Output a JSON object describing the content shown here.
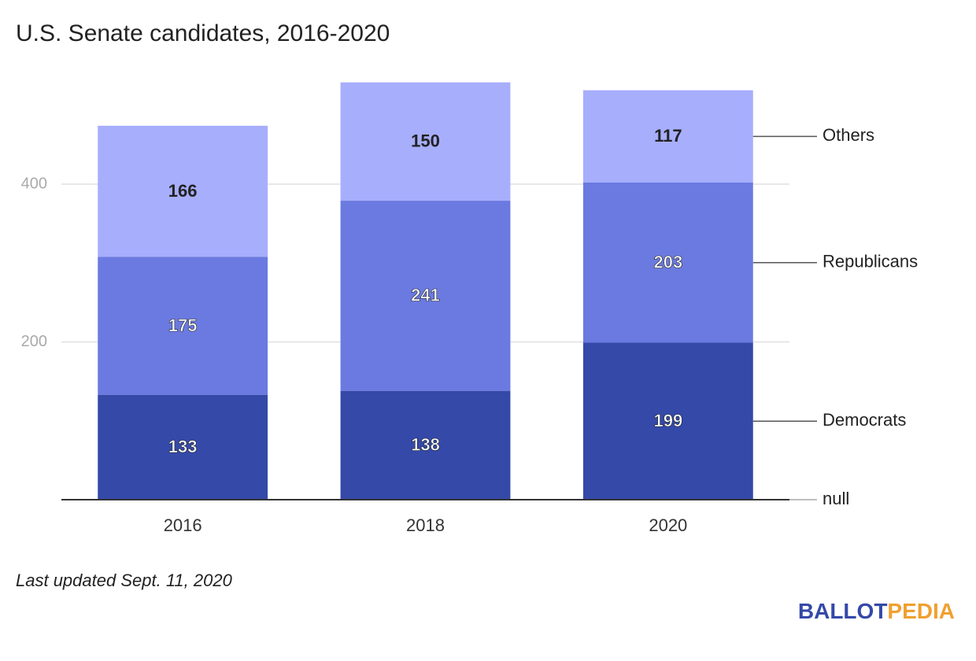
{
  "chart_data": {
    "type": "stacked-bar",
    "title": "U.S. Senate candidates, 2016-2020",
    "categories": [
      "2016",
      "2018",
      "2020"
    ],
    "series": [
      {
        "name": "null",
        "color": "#9e9e9e",
        "values": [
          0,
          0,
          0
        ]
      },
      {
        "name": "Democrats",
        "color": "#3449a8",
        "values": [
          133,
          138,
          199
        ]
      },
      {
        "name": "Republicans",
        "color": "#6b7ae0",
        "values": [
          175,
          241,
          203
        ]
      },
      {
        "name": "Others",
        "color": "#a7aefc",
        "values": [
          166,
          150,
          117
        ]
      }
    ],
    "ylim": [
      0,
      600
    ],
    "yticks": [
      200,
      400
    ],
    "grid": true,
    "footnote": "Last updated Sept. 11, 2020",
    "logo": {
      "part1": "BALLOT",
      "part2": "PEDIA"
    }
  }
}
